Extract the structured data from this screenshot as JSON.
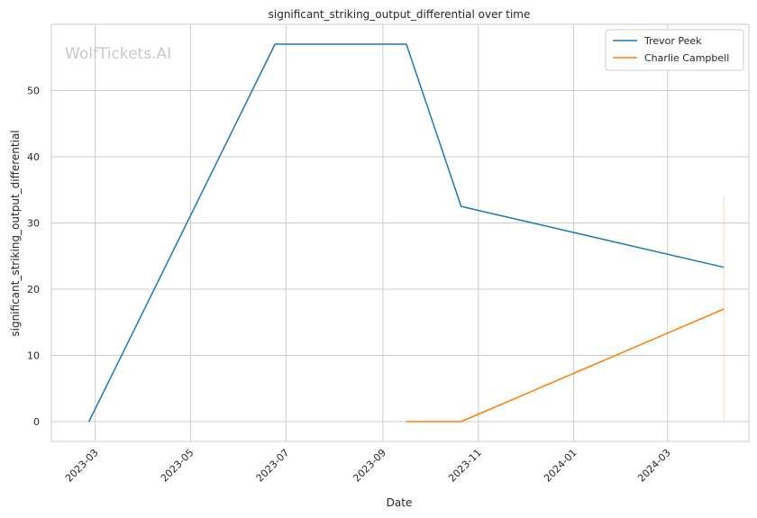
{
  "chart_data": {
    "type": "line",
    "title": "significant_striking_output_differential over time",
    "xlabel": "Date",
    "ylabel": "significant_striking_output_differential",
    "watermark": "WolfTickets.AI",
    "xlim": [
      "2023-02-01",
      "2024-04-22"
    ],
    "ylim": [
      -3,
      60
    ],
    "x_ticks": [
      "2023-03",
      "2023-05",
      "2023-07",
      "2023-09",
      "2023-11",
      "2024-01",
      "2024-03"
    ],
    "y_ticks": [
      0,
      10,
      20,
      30,
      40,
      50
    ],
    "grid": true,
    "legend_position": "top-right",
    "series": [
      {
        "name": "Trevor Peek",
        "color": "#1f77b4",
        "x": [
          "2023-02-25",
          "2023-06-24",
          "2023-09-16",
          "2023-10-21",
          "2024-04-06"
        ],
        "y": [
          0,
          57,
          57,
          32.5,
          23.3
        ]
      },
      {
        "name": "Charlie Campbell",
        "color": "#ff7f0e",
        "x": [
          "2023-09-16",
          "2023-10-21",
          "2024-04-06"
        ],
        "y": [
          0,
          0,
          17
        ]
      }
    ],
    "annotation_line": {
      "x": "2024-04-06",
      "y_range": [
        0,
        34
      ],
      "color": "#ff7f0e"
    }
  }
}
